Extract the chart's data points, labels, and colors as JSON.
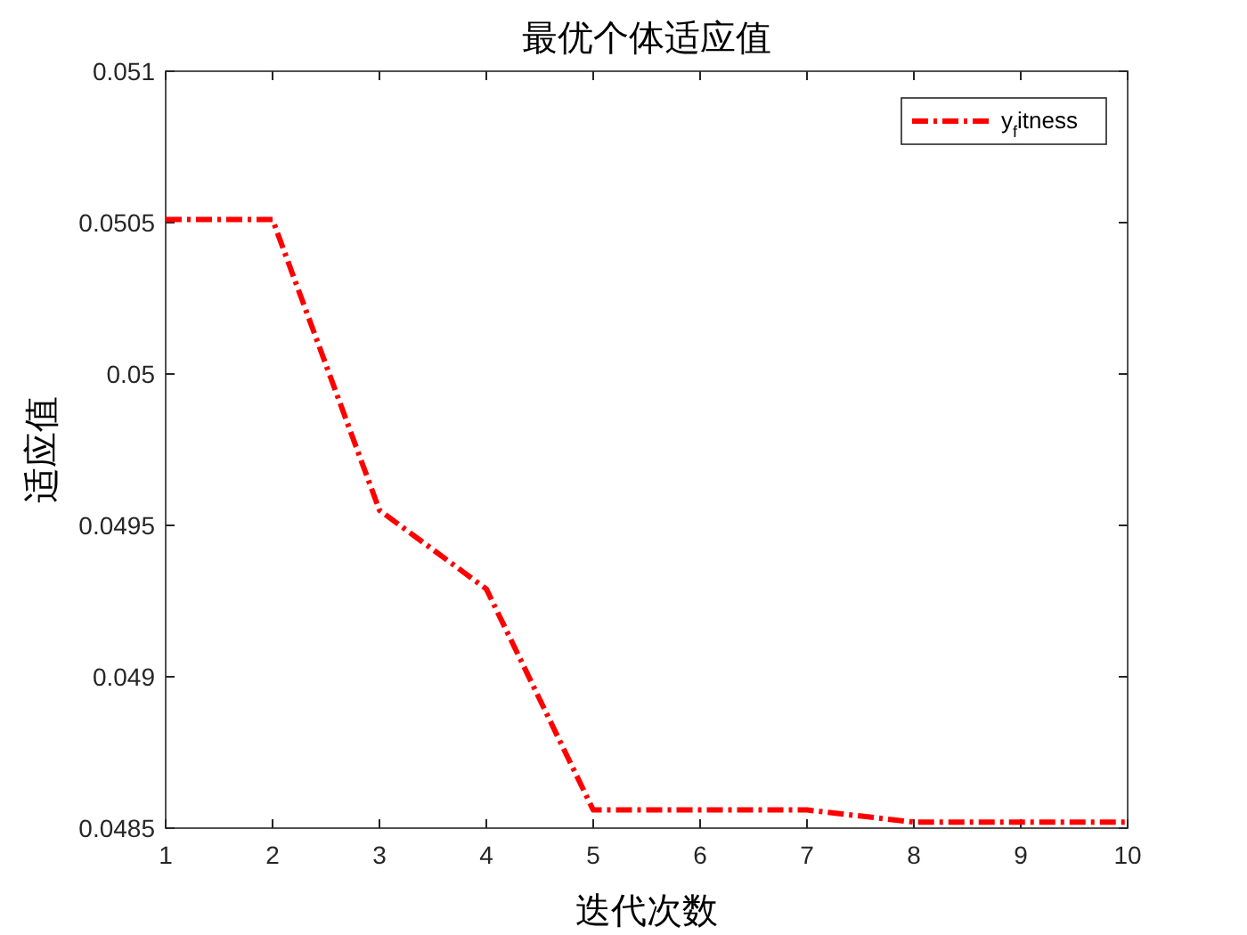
{
  "chart_data": {
    "type": "line",
    "title": "最优个体适应值",
    "xlabel": "迭代次数",
    "ylabel": "适应值",
    "x": [
      1,
      2,
      3,
      4,
      5,
      6,
      7,
      8,
      9,
      10
    ],
    "series": [
      {
        "name": "y$_{f}$itness",
        "color": "#ff0000",
        "values": [
          0.05051,
          0.05051,
          0.04955,
          0.04929,
          0.04856,
          0.04856,
          0.04856,
          0.04852,
          0.04852,
          0.04852
        ]
      }
    ],
    "xlim": [
      1,
      10
    ],
    "xticks": [
      1,
      2,
      3,
      4,
      5,
      6,
      7,
      8,
      9,
      10
    ],
    "ylim": [
      0.0485,
      0.051
    ],
    "yticks": [
      0.0485,
      0.049,
      0.0495,
      0.05,
      0.0505,
      0.051
    ],
    "legend": "top right",
    "grid": false,
    "marker": "none",
    "line_style": "dashed"
  }
}
